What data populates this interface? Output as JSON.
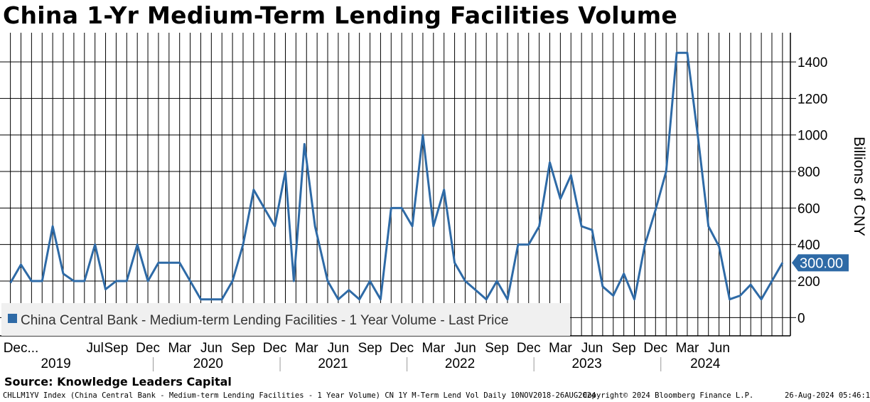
{
  "title": "China 1-Yr Medium-Term Lending Facilities Volume",
  "source": "Source: Knowledge Leaders Capital",
  "footer": {
    "left": "CHLLM1YV Index (China Central Bank - Medium-term Lending Facilities - 1 Year Volume) CN 1Y M-Term Lend Vol  Daily 10NOV2018-26AUG2024",
    "middle": "Copyright© 2024 Bloomberg Finance L.P.",
    "right": "26-Aug-2024 05:46:19"
  },
  "colors": {
    "series": "#2e6aa6",
    "grid": "#000000",
    "legend_bg": "#f0f0f0"
  },
  "chart_data": {
    "type": "line",
    "title": "China 1-Yr Medium-Term Lending Facilities Volume",
    "ylabel": "Billions of CNY",
    "ylim": [
      -100,
      1560
    ],
    "y_ticks": [
      0,
      200,
      400,
      600,
      800,
      1000,
      1200,
      1400
    ],
    "y_tick_labels": [
      "0",
      "200",
      "400",
      "600",
      "800",
      "1000",
      "1200",
      "1400"
    ],
    "last_value_label": "300.00",
    "legend": "China Central Bank - Medium-term Lending Facilities - 1 Year Volume - Last Price",
    "x_labels": [
      {
        "label": "Dec...",
        "m": 0
      },
      {
        "label": "Jul",
        "m": 7
      },
      {
        "label": "Sep",
        "m": 9
      },
      {
        "label": "Dec",
        "m": 12
      },
      {
        "label": "Mar",
        "m": 15
      },
      {
        "label": "Jun",
        "m": 18
      },
      {
        "label": "Sep",
        "m": 21
      },
      {
        "label": "Dec",
        "m": 24
      },
      {
        "label": "Mar",
        "m": 27
      },
      {
        "label": "Jun",
        "m": 30
      },
      {
        "label": "Sep",
        "m": 33
      },
      {
        "label": "Dec",
        "m": 36
      },
      {
        "label": "Mar",
        "m": 39
      },
      {
        "label": "Jun",
        "m": 42
      },
      {
        "label": "Sep",
        "m": 45
      },
      {
        "label": "Dec",
        "m": 48
      },
      {
        "label": "Mar",
        "m": 51
      },
      {
        "label": "Jun",
        "m": 54
      },
      {
        "label": "Sep",
        "m": 57
      },
      {
        "label": "Dec",
        "m": 60
      },
      {
        "label": "Mar",
        "m": 63
      },
      {
        "label": "Jun",
        "m": 66
      }
    ],
    "years": [
      "2019",
      "2020",
      "2021",
      "2022",
      "2023",
      "2024"
    ],
    "series": [
      {
        "name": "China Central Bank - Medium-term Lending Facilities - 1 Year Volume - Last Price",
        "points": [
          {
            "m": -1.0,
            "v": 190
          },
          {
            "m": 0.0,
            "v": 290
          },
          {
            "m": 1.0,
            "v": 200
          },
          {
            "m": 2.0,
            "v": 200
          },
          {
            "m": 3.0,
            "v": 500
          },
          {
            "m": 4.0,
            "v": 240
          },
          {
            "m": 5.0,
            "v": 200
          },
          {
            "m": 6.0,
            "v": 200
          },
          {
            "m": 7.0,
            "v": 400
          },
          {
            "m": 8.0,
            "v": 155
          },
          {
            "m": 9.0,
            "v": 200
          },
          {
            "m": 10.0,
            "v": 200
          },
          {
            "m": 11.0,
            "v": 400
          },
          {
            "m": 12.0,
            "v": 200
          },
          {
            "m": 13.0,
            "v": 300
          },
          {
            "m": 14.0,
            "v": 300
          },
          {
            "m": 15.0,
            "v": 300
          },
          {
            "m": 16.0,
            "v": 200
          },
          {
            "m": 17.0,
            "v": 100
          },
          {
            "m": 18.0,
            "v": 100
          },
          {
            "m": 19.0,
            "v": 100
          },
          {
            "m": 20.0,
            "v": 200
          },
          {
            "m": 21.0,
            "v": 400
          },
          {
            "m": 22.0,
            "v": 700
          },
          {
            "m": 23.0,
            "v": 600
          },
          {
            "m": 24.0,
            "v": 500
          },
          {
            "m": 25.0,
            "v": 800
          },
          {
            "m": 25.8,
            "v": 200
          },
          {
            "m": 26.8,
            "v": 950
          },
          {
            "m": 27.8,
            "v": 500
          },
          {
            "m": 29.0,
            "v": 200
          },
          {
            "m": 30.0,
            "v": 100
          },
          {
            "m": 31.0,
            "v": 150
          },
          {
            "m": 32.0,
            "v": 100
          },
          {
            "m": 33.0,
            "v": 200
          },
          {
            "m": 34.0,
            "v": 100
          },
          {
            "m": 35.0,
            "v": 600
          },
          {
            "m": 36.0,
            "v": 600
          },
          {
            "m": 37.0,
            "v": 500
          },
          {
            "m": 38.0,
            "v": 1000
          },
          {
            "m": 39.0,
            "v": 500
          },
          {
            "m": 40.0,
            "v": 700
          },
          {
            "m": 41.0,
            "v": 300
          },
          {
            "m": 42.0,
            "v": 200
          },
          {
            "m": 43.0,
            "v": 150
          },
          {
            "m": 44.0,
            "v": 100
          },
          {
            "m": 45.0,
            "v": 200
          },
          {
            "m": 46.0,
            "v": 100
          },
          {
            "m": 47.0,
            "v": 400
          },
          {
            "m": 48.0,
            "v": 400
          },
          {
            "m": 49.0,
            "v": 500
          },
          {
            "m": 50.0,
            "v": 850
          },
          {
            "m": 51.0,
            "v": 650
          },
          {
            "m": 52.0,
            "v": 780
          },
          {
            "m": 53.0,
            "v": 500
          },
          {
            "m": 54.0,
            "v": 480
          },
          {
            "m": 55.0,
            "v": 170
          },
          {
            "m": 56.0,
            "v": 120
          },
          {
            "m": 57.0,
            "v": 240
          },
          {
            "m": 58.0,
            "v": 100
          },
          {
            "m": 59.0,
            "v": 400
          },
          {
            "m": 60.0,
            "v": 590
          },
          {
            "m": 61.0,
            "v": 800
          },
          {
            "m": 62.0,
            "v": 1450
          },
          {
            "m": 63.0,
            "v": 1450
          },
          {
            "m": 64.0,
            "v": 995
          },
          {
            "m": 65.0,
            "v": 500
          },
          {
            "m": 66.0,
            "v": 390
          },
          {
            "m": 67.0,
            "v": 100
          },
          {
            "m": 68.0,
            "v": 120
          },
          {
            "m": 69.0,
            "v": 180
          },
          {
            "m": 70.0,
            "v": 100
          },
          {
            "m": 71.0,
            "v": 200
          },
          {
            "m": 72.0,
            "v": 300
          }
        ]
      }
    ]
  }
}
